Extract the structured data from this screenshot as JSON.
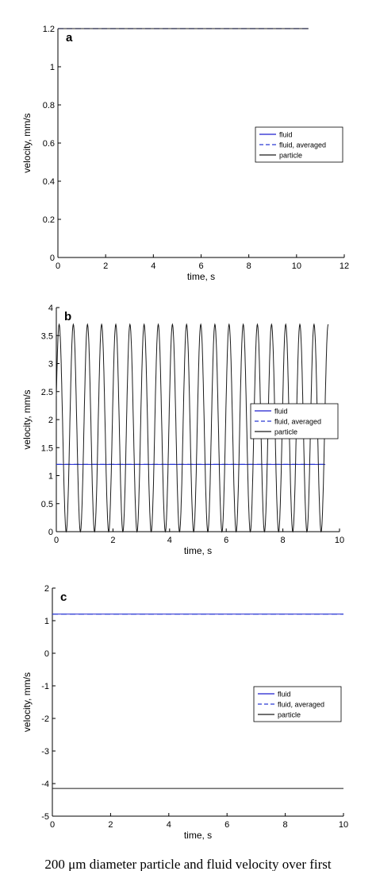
{
  "colors": {
    "fluid": "#1f1fcf",
    "averaged": "#2a3bd4",
    "particle": "#1a1a1a",
    "axis": "#000000",
    "background": "#ffffff"
  },
  "caption": "200 μm diameter particle and fluid velocity over first",
  "chart_data": [
    {
      "panel_label": "a",
      "type": "line",
      "xlabel": "time, s",
      "ylabel": "velocity, mm/s",
      "xlim": [
        0,
        12
      ],
      "ylim": [
        0,
        1.2
      ],
      "xticks": [
        0,
        2,
        4,
        6,
        8,
        10,
        12
      ],
      "yticks": [
        0,
        0.2,
        0.4,
        0.6,
        0.8,
        1,
        1.2
      ],
      "xtick_labels": [
        "0",
        "2",
        "4",
        "6",
        "8",
        "10",
        "12"
      ],
      "ytick_labels": [
        "0",
        "0.2",
        "0.4",
        "0.6",
        "0.8",
        "1",
        "1.2"
      ],
      "grid": false,
      "legend_position": "center-right",
      "series": [
        {
          "name": "fluid",
          "style": "solid",
          "color": "#1f1fcf",
          "x": [
            0,
            10.5
          ],
          "y": [
            1.2,
            1.2
          ]
        },
        {
          "name": "fluid, averaged",
          "style": "dashed",
          "color": "#2a3bd4",
          "x": [
            0,
            10.5
          ],
          "y": [
            1.2,
            1.2
          ]
        },
        {
          "name": "particle",
          "style": "solid",
          "color": "#1a1a1a",
          "x": [
            0,
            10.5
          ],
          "y": [
            1.2,
            1.2
          ]
        }
      ]
    },
    {
      "panel_label": "b",
      "type": "line",
      "xlabel": "time, s",
      "ylabel": "velocity, mm/s",
      "xlim": [
        0,
        10
      ],
      "ylim": [
        0,
        4
      ],
      "xticks": [
        0,
        2,
        4,
        6,
        8,
        10
      ],
      "yticks": [
        0,
        0.5,
        1,
        1.5,
        2,
        2.5,
        3,
        3.5,
        4
      ],
      "xtick_labels": [
        "0",
        "2",
        "4",
        "6",
        "8",
        "10"
      ],
      "ytick_labels": [
        "0",
        "0.5",
        "1",
        "1.5",
        "2",
        "2.5",
        "3",
        "3.5",
        "4"
      ],
      "grid": false,
      "legend_position": "center-right",
      "series": [
        {
          "name": "fluid",
          "style": "solid",
          "color": "#1f1fcf",
          "x": [
            0,
            9.5
          ],
          "y": [
            1.2,
            1.2
          ]
        },
        {
          "name": "fluid, averaged",
          "style": "dashed",
          "color": "#2a3bd4",
          "x": [
            0,
            9.5
          ],
          "y": [
            1.2,
            1.2
          ]
        },
        {
          "name": "particle",
          "style": "solid",
          "color": "#1a1a1a",
          "oscillation": {
            "period": 0.5,
            "first_peak": 0.1,
            "min": 0,
            "max": 3.7,
            "x_end": 9.6
          }
        }
      ]
    },
    {
      "panel_label": "c",
      "type": "line",
      "xlabel": "time, s",
      "ylabel": "velocity, mm/s",
      "xlim": [
        0,
        10
      ],
      "ylim": [
        -5,
        2
      ],
      "xticks": [
        0,
        2,
        4,
        6,
        8,
        10
      ],
      "yticks": [
        -5,
        -4,
        -3,
        -2,
        -1,
        0,
        1,
        2
      ],
      "xtick_labels": [
        "0",
        "2",
        "4",
        "6",
        "8",
        "10"
      ],
      "ytick_labels": [
        "-5",
        "-4",
        "-3",
        "-2",
        "-1",
        "0",
        "1",
        "2"
      ],
      "grid": false,
      "legend_position": "center-right",
      "series": [
        {
          "name": "fluid",
          "style": "solid",
          "color": "#1f1fcf",
          "x": [
            0,
            10
          ],
          "y": [
            1.2,
            1.2
          ]
        },
        {
          "name": "fluid, averaged",
          "style": "dashed",
          "color": "#2a3bd4",
          "x": [
            0,
            10
          ],
          "y": [
            1.2,
            1.2
          ]
        },
        {
          "name": "particle",
          "style": "solid",
          "color": "#1a1a1a",
          "x": [
            0,
            10
          ],
          "y": [
            -4.15,
            -4.15
          ]
        }
      ]
    }
  ]
}
